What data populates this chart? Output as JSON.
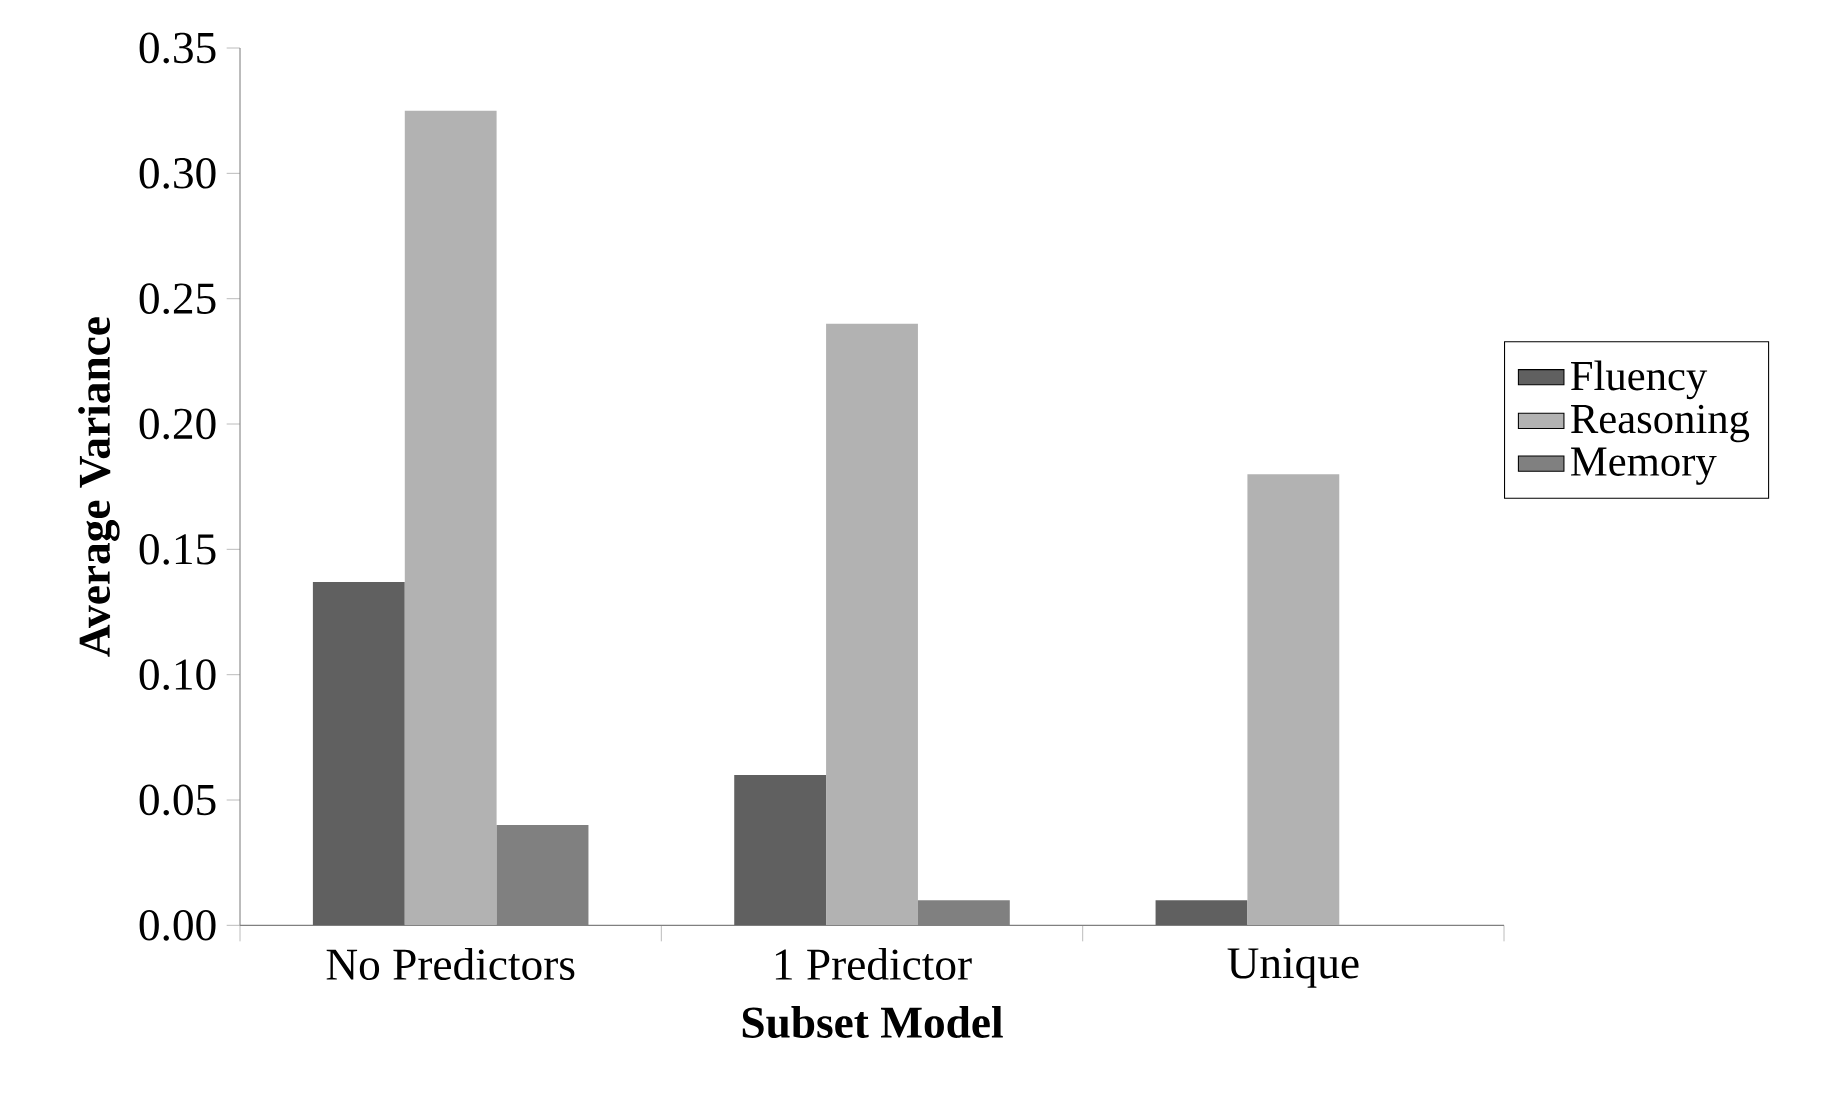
{
  "chart_data": {
    "type": "bar",
    "xlabel": "Subset Model",
    "ylabel": "Average Variance",
    "categories": [
      "No Predictors",
      "1 Predictor",
      "Unique"
    ],
    "series": [
      {
        "name": "Fluency",
        "color": "#606060",
        "values": [
          0.137,
          0.06,
          0.01
        ]
      },
      {
        "name": "Reasoning",
        "color": "#b2b2b2",
        "values": [
          0.325,
          0.24,
          0.18
        ]
      },
      {
        "name": "Memory",
        "color": "#808080",
        "values": [
          0.04,
          0.01,
          null
        ]
      }
    ],
    "ylim": [
      0,
      0.35
    ],
    "yticks": [
      {
        "value": 0,
        "label": "0.00"
      },
      {
        "value": 0.05,
        "label": "0.05"
      },
      {
        "value": 0.1,
        "label": "0.10"
      },
      {
        "value": 0.15,
        "label": "0.15"
      },
      {
        "value": 0.2,
        "label": "0.20"
      },
      {
        "value": 0.25,
        "label": "0.25"
      },
      {
        "value": 0.3,
        "label": "0.30"
      },
      {
        "value": 0.35,
        "label": "0.35"
      }
    ],
    "grid": false,
    "legend": "right"
  }
}
